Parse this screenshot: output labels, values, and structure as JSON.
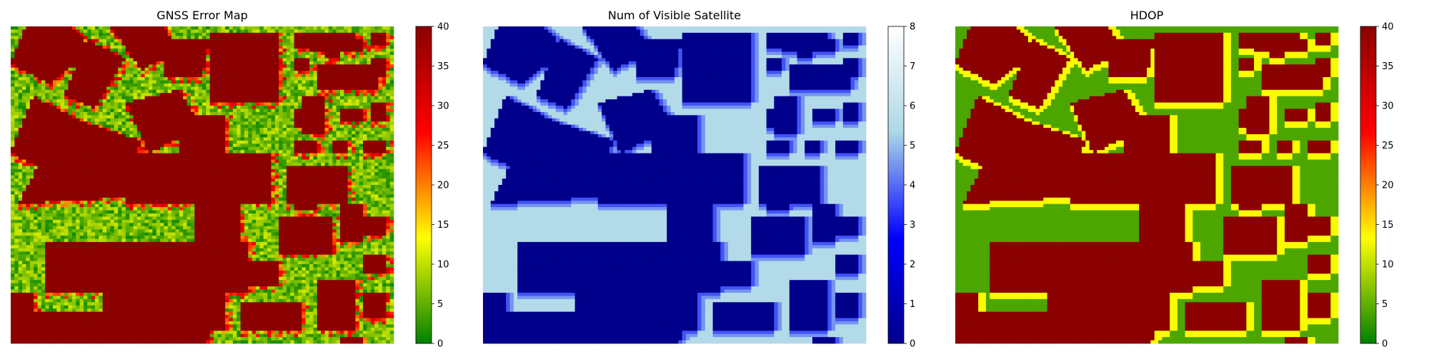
{
  "chart_data": [
    {
      "type": "heatmap",
      "title": "GNSS Error Map",
      "colormap": [
        "#008000",
        "#ffff00",
        "#ff0000",
        "#8b0000"
      ],
      "colorbar": {
        "min": 0,
        "max": 40,
        "ticks": [
          0,
          5,
          10,
          15,
          20,
          25,
          30,
          35,
          40
        ]
      },
      "building_value": 40,
      "open_area_range": [
        0,
        15
      ],
      "grid": false
    },
    {
      "type": "heatmap",
      "title": "Num of Visible Satellite",
      "colormap": [
        "#00008b",
        "#0000ff",
        "#add8e6",
        "#ffffff"
      ],
      "colorbar": {
        "min": 0,
        "max": 8,
        "ticks": [
          0,
          1,
          2,
          3,
          4,
          5,
          6,
          7,
          8
        ]
      },
      "building_value": 0,
      "open_area_value": 5.5,
      "grid": false
    },
    {
      "type": "heatmap",
      "title": "HDOP",
      "colormap": [
        "#008000",
        "#ffff00",
        "#ff0000",
        "#8b0000"
      ],
      "colorbar": {
        "min": 0,
        "max": 40,
        "ticks": [
          0,
          5,
          10,
          15,
          20,
          25,
          30,
          35,
          40
        ]
      },
      "building_value": 40,
      "open_area_value": 4,
      "edge_value": 13,
      "grid": false
    }
  ]
}
